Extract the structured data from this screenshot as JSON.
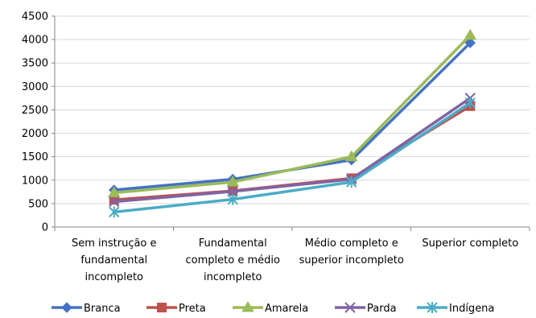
{
  "chart_data": {
    "type": "line",
    "categories": [
      [
        "Sem instrução e",
        "fundamental",
        "incompleto"
      ],
      [
        "Fundamental",
        "completo e médio",
        "incompleto"
      ],
      [
        "Médio completo e",
        "superior incompleto"
      ],
      [
        "Superior completo"
      ]
    ],
    "ylim": [
      0,
      4500
    ],
    "yticks": [
      0,
      500,
      1000,
      1500,
      2000,
      2500,
      3000,
      3500,
      4000,
      4500
    ],
    "grid": true,
    "legend_position": "bottom",
    "series": [
      {
        "name": "Branca",
        "color": "#4472C4",
        "marker": "diamond",
        "values": [
          790,
          1020,
          1430,
          3930
        ]
      },
      {
        "name": "Preta",
        "color": "#C0504D",
        "marker": "square",
        "values": [
          580,
          770,
          1040,
          2580
        ]
      },
      {
        "name": "Amarela",
        "color": "#9BBB59",
        "marker": "triangle",
        "values": [
          730,
          960,
          1500,
          4090
        ]
      },
      {
        "name": "Parda",
        "color": "#8064A2",
        "marker": "x",
        "values": [
          540,
          760,
          1020,
          2750
        ]
      },
      {
        "name": "Indígena",
        "color": "#4BACC6",
        "marker": "star",
        "values": [
          320,
          590,
          960,
          2650
        ]
      }
    ]
  }
}
